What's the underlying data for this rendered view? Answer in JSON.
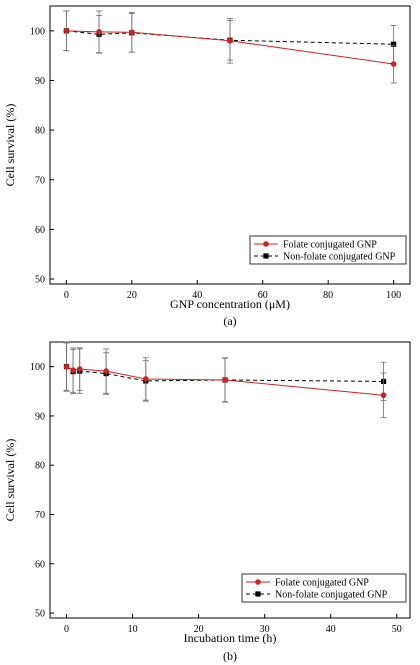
{
  "chart_data": [
    {
      "type": "line",
      "panel_label": "(a)",
      "xlabel": "GNP concentration (μM)",
      "ylabel": "Cell survival (%)",
      "xlim": [
        -5,
        105
      ],
      "ylim": [
        49,
        105
      ],
      "xticks": [
        0,
        20,
        40,
        60,
        80,
        100
      ],
      "yticks": [
        50,
        60,
        70,
        80,
        90,
        100
      ],
      "grid": false,
      "legend_position": "bottom-right",
      "series": [
        {
          "name": "Folate conjugated GNP",
          "style": "solid",
          "marker": "circle",
          "color": "#cc2222",
          "points": [
            {
              "x": 0,
              "y": 100.0,
              "err": 4.0
            },
            {
              "x": 10,
              "y": 99.8,
              "err": 4.2
            },
            {
              "x": 20,
              "y": 99.7,
              "err": 4.0
            },
            {
              "x": 50,
              "y": 98.0,
              "err": 4.5
            },
            {
              "x": 100,
              "y": 93.3,
              "err": 3.8
            }
          ]
        },
        {
          "name": "Non-folate conjugated GNP",
          "style": "dashed",
          "marker": "square",
          "color": "#000000",
          "points": [
            {
              "x": 0,
              "y": 100.0,
              "err": 4.0
            },
            {
              "x": 10,
              "y": 99.3,
              "err": 3.8
            },
            {
              "x": 20,
              "y": 99.6,
              "err": 3.9
            },
            {
              "x": 50,
              "y": 98.1,
              "err": 4.0
            },
            {
              "x": 100,
              "y": 97.3,
              "err": 3.8
            }
          ]
        }
      ]
    },
    {
      "type": "line",
      "panel_label": "(b)",
      "xlabel": "Incubation time (h)",
      "ylabel": "Cell survival (%)",
      "xlim": [
        -2.5,
        52
      ],
      "ylim": [
        49,
        105
      ],
      "xticks": [
        0,
        10,
        20,
        30,
        40,
        50
      ],
      "yticks": [
        50,
        60,
        70,
        80,
        90,
        100
      ],
      "grid": false,
      "legend_position": "bottom-right",
      "series": [
        {
          "name": "Folate conjugated GNP",
          "style": "solid",
          "marker": "circle",
          "color": "#cc2222",
          "points": [
            {
              "x": 0,
              "y": 100.0,
              "err": 5.0
            },
            {
              "x": 1,
              "y": 99.3,
              "err": 4.5
            },
            {
              "x": 2,
              "y": 99.5,
              "err": 4.3
            },
            {
              "x": 6,
              "y": 99.1,
              "err": 4.5
            },
            {
              "x": 12,
              "y": 97.5,
              "err": 4.3
            },
            {
              "x": 24,
              "y": 97.3,
              "err": 4.5
            },
            {
              "x": 48,
              "y": 94.2,
              "err": 4.5
            }
          ]
        },
        {
          "name": "Non-folate conjugated GNP",
          "style": "dashed",
          "marker": "square",
          "color": "#000000",
          "points": [
            {
              "x": 0,
              "y": 100.0,
              "err": 4.8
            },
            {
              "x": 1,
              "y": 99.0,
              "err": 4.5
            },
            {
              "x": 2,
              "y": 99.1,
              "err": 4.5
            },
            {
              "x": 6,
              "y": 98.6,
              "err": 4.2
            },
            {
              "x": 12,
              "y": 97.1,
              "err": 4.1
            },
            {
              "x": 24,
              "y": 97.3,
              "err": 4.4
            },
            {
              "x": 48,
              "y": 97.0,
              "err": 3.9
            }
          ]
        }
      ]
    }
  ]
}
